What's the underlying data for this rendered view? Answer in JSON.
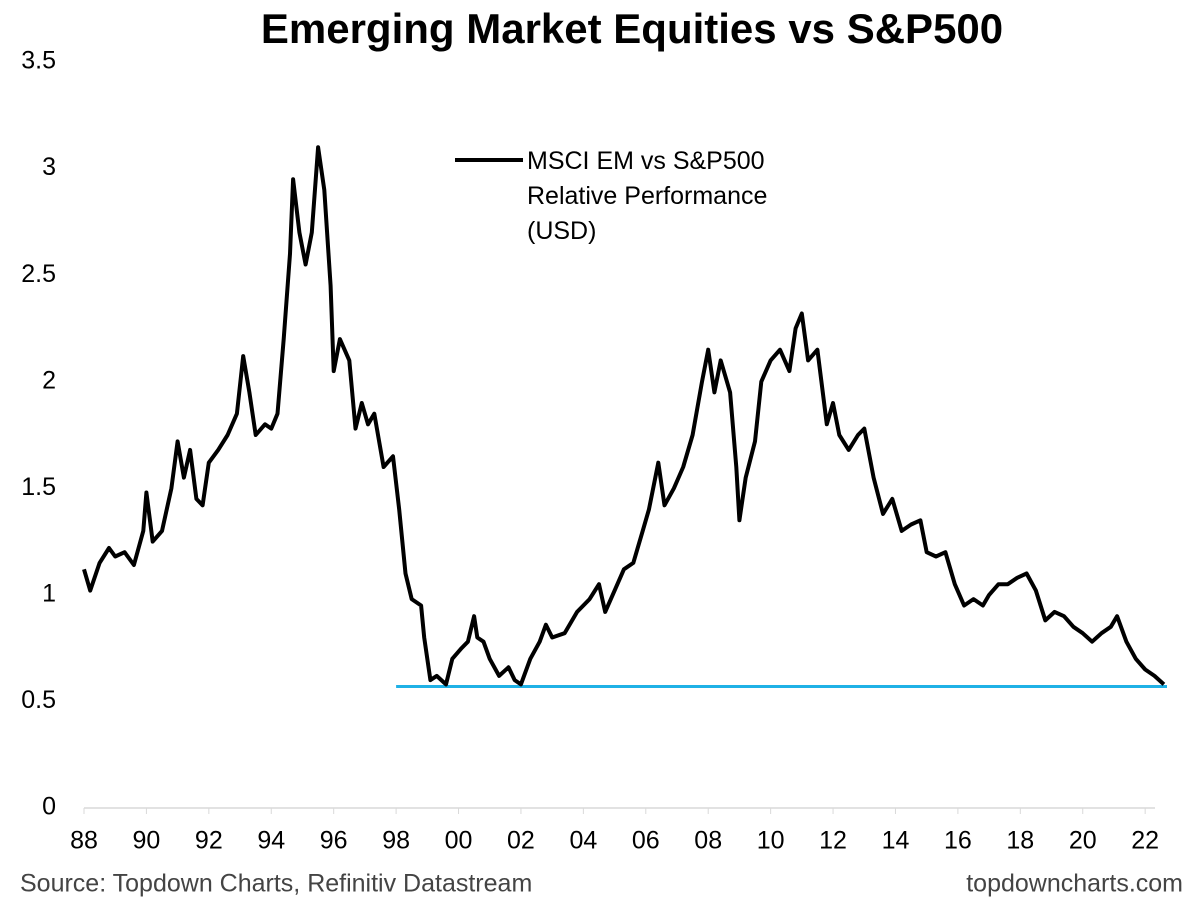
{
  "chart_data": {
    "type": "line",
    "title": "Emerging Market Equities vs S&P500",
    "source": "Source: Topdown Charts, Refinitiv Datastream",
    "website": "topdowncharts.com",
    "x": [
      1988.0,
      1988.2,
      1988.5,
      1988.8,
      1989.0,
      1989.3,
      1989.6,
      1989.9,
      1990.0,
      1990.2,
      1990.5,
      1990.8,
      1991.0,
      1991.2,
      1991.4,
      1991.6,
      1991.8,
      1992.0,
      1992.3,
      1992.6,
      1992.9,
      1993.1,
      1993.3,
      1993.5,
      1993.8,
      1994.0,
      1994.2,
      1994.4,
      1994.6,
      1994.7,
      1994.9,
      1995.1,
      1995.3,
      1995.5,
      1995.7,
      1995.9,
      1996.0,
      1996.2,
      1996.5,
      1996.7,
      1996.9,
      1997.1,
      1997.3,
      1997.6,
      1997.9,
      1998.1,
      1998.3,
      1998.5,
      1998.8,
      1998.9,
      1999.1,
      1999.3,
      1999.6,
      1999.8,
      2000.1,
      2000.3,
      2000.5,
      2000.6,
      2000.8,
      2001.0,
      2001.3,
      2001.6,
      2001.8,
      2002.0,
      2002.3,
      2002.6,
      2002.8,
      2003.0,
      2003.4,
      2003.8,
      2004.2,
      2004.5,
      2004.7,
      2005.0,
      2005.3,
      2005.6,
      2005.9,
      2006.1,
      2006.4,
      2006.6,
      2006.9,
      2007.2,
      2007.5,
      2007.8,
      2008.0,
      2008.2,
      2008.4,
      2008.7,
      2008.9,
      2009.0,
      2009.2,
      2009.5,
      2009.7,
      2010.0,
      2010.3,
      2010.6,
      2010.8,
      2011.0,
      2011.2,
      2011.5,
      2011.8,
      2012.0,
      2012.2,
      2012.5,
      2012.8,
      2013.0,
      2013.3,
      2013.6,
      2013.9,
      2014.2,
      2014.5,
      2014.8,
      2015.0,
      2015.3,
      2015.6,
      2015.9,
      2016.2,
      2016.5,
      2016.8,
      2017.0,
      2017.3,
      2017.6,
      2017.9,
      2018.2,
      2018.5,
      2018.8,
      2019.1,
      2019.4,
      2019.7,
      2020.0,
      2020.3,
      2020.6,
      2020.9,
      2021.1,
      2021.4,
      2021.7,
      2022.0,
      2022.3,
      2022.6
    ],
    "series": [
      {
        "name": "MSCI EM vs S&P500 Relative Performance (USD)",
        "color": "#000000",
        "values": [
          1.12,
          1.02,
          1.15,
          1.22,
          1.18,
          1.2,
          1.14,
          1.3,
          1.48,
          1.25,
          1.3,
          1.5,
          1.72,
          1.55,
          1.68,
          1.45,
          1.42,
          1.62,
          1.68,
          1.75,
          1.85,
          2.12,
          1.95,
          1.75,
          1.8,
          1.78,
          1.85,
          2.2,
          2.6,
          2.95,
          2.7,
          2.55,
          2.7,
          3.1,
          2.9,
          2.45,
          2.05,
          2.2,
          2.1,
          1.78,
          1.9,
          1.8,
          1.85,
          1.6,
          1.65,
          1.4,
          1.1,
          0.98,
          0.95,
          0.8,
          0.6,
          0.62,
          0.58,
          0.7,
          0.75,
          0.78,
          0.9,
          0.8,
          0.78,
          0.7,
          0.62,
          0.66,
          0.6,
          0.58,
          0.7,
          0.78,
          0.86,
          0.8,
          0.82,
          0.92,
          0.98,
          1.05,
          0.92,
          1.02,
          1.12,
          1.15,
          1.3,
          1.4,
          1.62,
          1.42,
          1.5,
          1.6,
          1.75,
          2.0,
          2.15,
          1.95,
          2.1,
          1.95,
          1.6,
          1.35,
          1.55,
          1.72,
          2.0,
          2.1,
          2.15,
          2.05,
          2.25,
          2.32,
          2.1,
          2.15,
          1.8,
          1.9,
          1.75,
          1.68,
          1.75,
          1.78,
          1.55,
          1.38,
          1.45,
          1.3,
          1.33,
          1.35,
          1.2,
          1.18,
          1.2,
          1.05,
          0.95,
          0.98,
          0.95,
          1.0,
          1.05,
          1.05,
          1.08,
          1.1,
          1.02,
          0.88,
          0.92,
          0.9,
          0.85,
          0.82,
          0.78,
          0.82,
          0.85,
          0.9,
          0.78,
          0.7,
          0.65,
          0.62,
          0.58
        ]
      }
    ],
    "reference_line": {
      "value": 0.57,
      "x": [
        1998.0,
        2022.7
      ],
      "color": "#1fb1e6"
    },
    "xlim": [
      1988,
      2022.7
    ],
    "xticks": [
      {
        "value": 1988,
        "label": "88"
      },
      {
        "value": 1990,
        "label": "90"
      },
      {
        "value": 1992,
        "label": "92"
      },
      {
        "value": 1994,
        "label": "94"
      },
      {
        "value": 1996,
        "label": "96"
      },
      {
        "value": 1998,
        "label": "98"
      },
      {
        "value": 2000,
        "label": "00"
      },
      {
        "value": 2002,
        "label": "02"
      },
      {
        "value": 2004,
        "label": "04"
      },
      {
        "value": 2006,
        "label": "06"
      },
      {
        "value": 2008,
        "label": "08"
      },
      {
        "value": 2010,
        "label": "10"
      },
      {
        "value": 2012,
        "label": "12"
      },
      {
        "value": 2014,
        "label": "14"
      },
      {
        "value": 2016,
        "label": "16"
      },
      {
        "value": 2018,
        "label": "18"
      },
      {
        "value": 2020,
        "label": "20"
      },
      {
        "value": 2022,
        "label": "22"
      }
    ],
    "ylim": [
      0,
      3.5
    ],
    "yticks": [
      0,
      0.5,
      1,
      1.5,
      2,
      2.5,
      3,
      3.5
    ],
    "grid": false
  }
}
